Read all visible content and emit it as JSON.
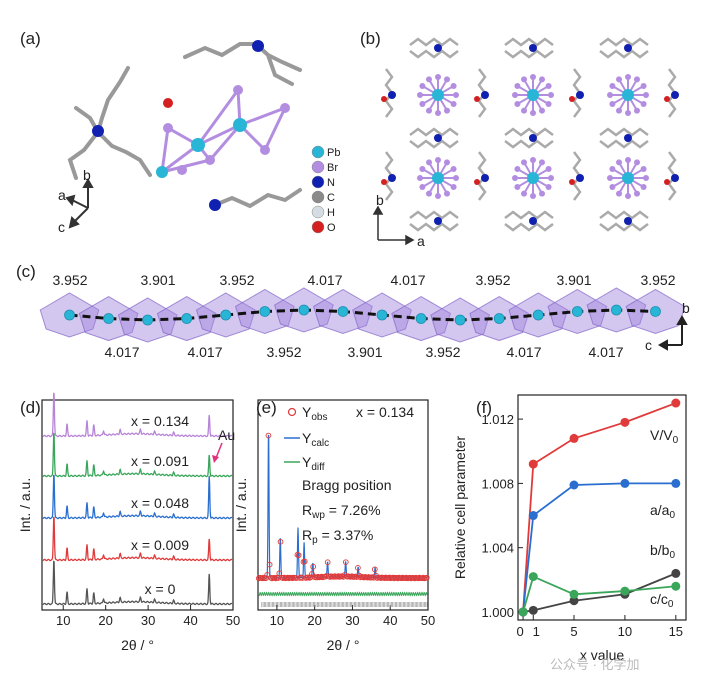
{
  "panels": {
    "a": "(a)",
    "b": "(b)",
    "c": "(c)",
    "d": "(d)",
    "e": "(e)",
    "f": "(f)"
  },
  "panel_a": {
    "legend": [
      {
        "name": "Pb",
        "color": "#29b6d6"
      },
      {
        "name": "Br",
        "color": "#b38ee0"
      },
      {
        "name": "N",
        "color": "#1020b0"
      },
      {
        "name": "C",
        "color": "#8a8a8a"
      },
      {
        "name": "H",
        "color": "#d6dde2"
      },
      {
        "name": "O",
        "color": "#d42020"
      }
    ],
    "axes": {
      "a": "a",
      "b": "b",
      "c": "c"
    }
  },
  "panel_b": {
    "axes": {
      "b": "b",
      "a": "a"
    }
  },
  "panel_c": {
    "top_labels": [
      {
        "text": "3.952",
        "color": "#4cc24c"
      },
      {
        "text": "3.901",
        "color": "#4cc24c"
      },
      {
        "text": "3.952",
        "color": "#4cc24c"
      },
      {
        "text": "4.017",
        "color": "#1a1ab0"
      },
      {
        "text": "4.017",
        "color": "#1a1ab0"
      },
      {
        "text": "3.952",
        "color": "#4cc24c"
      },
      {
        "text": "3.901",
        "color": "#4cc24c"
      },
      {
        "text": "3.952",
        "color": "#4cc24c"
      }
    ],
    "bottom_labels": [
      {
        "text": "4.017",
        "color": "#4cc24c"
      },
      {
        "text": "4.017",
        "color": "#4cc24c"
      },
      {
        "text": "3.952",
        "color": "#1a1ab0"
      },
      {
        "text": "3.901",
        "color": "#1a1ab0"
      },
      {
        "text": "3.952",
        "color": "#1a1ab0"
      },
      {
        "text": "4.017",
        "color": "#4cc24c"
      },
      {
        "text": "4.017",
        "color": "#4cc24c"
      }
    ],
    "axes": {
      "b": "b",
      "c": "c"
    }
  },
  "chart_data": [
    {
      "panel": "d",
      "type": "line",
      "xlabel": "2θ / °",
      "ylabel": "Int. / a.u.",
      "xlim": [
        5,
        50
      ],
      "xticks": [
        10,
        20,
        30,
        40,
        50
      ],
      "series": [
        {
          "name": "x = 0",
          "color": "#555555",
          "offset": 0
        },
        {
          "name": "x = 0.009",
          "color": "#e03a3a",
          "offset": 1
        },
        {
          "name": "x = 0.048",
          "color": "#2a6fd0",
          "offset": 2
        },
        {
          "name": "x = 0.091",
          "color": "#3aa65a",
          "offset": 3
        },
        {
          "name": "x = 0.134",
          "color": "#b884d8",
          "offset": 4
        }
      ],
      "annotation": {
        "text": "Au",
        "color": "#e0337a",
        "x": 44.4
      }
    },
    {
      "panel": "e",
      "type": "line",
      "xlabel": "2θ / °",
      "ylabel": "Int. / a.u.",
      "xlim": [
        5,
        50
      ],
      "xticks": [
        10,
        20,
        30,
        40,
        50
      ],
      "legend": [
        "Y",
        "obs",
        "Y",
        "calc",
        "Y",
        "diff",
        "Bragg position"
      ],
      "x_value": "x = 0.134",
      "rwp": {
        "main": "R",
        "sub": "wp",
        "value": " = 7.26%"
      },
      "rp": {
        "main": "R",
        "sub": "p",
        "value": " = 3.37%"
      }
    },
    {
      "panel": "f",
      "type": "line",
      "xlabel": "x value",
      "ylabel": "Relative cell parameter",
      "xlim": [
        -0.5,
        16
      ],
      "ylim": [
        0.9995,
        1.0135
      ],
      "xticks": [
        "0",
        "1",
        "5",
        "10",
        "15"
      ],
      "xtick_values": [
        0,
        1,
        5,
        10,
        15
      ],
      "yticks": [
        "1.000",
        "1.004",
        "1.008",
        "1.012"
      ],
      "ytick_values": [
        1.0,
        1.004,
        1.008,
        1.012
      ],
      "x": [
        0,
        1,
        5,
        10,
        15
      ],
      "series": [
        {
          "name": "V/V",
          "sub": "0",
          "color": "#e03a3a",
          "values": [
            1.0,
            1.0092,
            1.0108,
            1.0118,
            1.013
          ]
        },
        {
          "name": "a/a",
          "sub": "0",
          "color": "#2a6fd0",
          "values": [
            1.0,
            1.006,
            1.0079,
            1.008,
            1.008
          ]
        },
        {
          "name": "b/b",
          "sub": "0",
          "color": "#444444",
          "values": [
            1.0,
            1.0001,
            1.0007,
            1.0011,
            1.0024
          ]
        },
        {
          "name": "c/c",
          "sub": "0",
          "color": "#3aa65a",
          "values": [
            1.0,
            1.0022,
            1.0011,
            1.0013,
            1.0016
          ]
        }
      ]
    }
  ],
  "watermark": "公众号 · 化学加"
}
